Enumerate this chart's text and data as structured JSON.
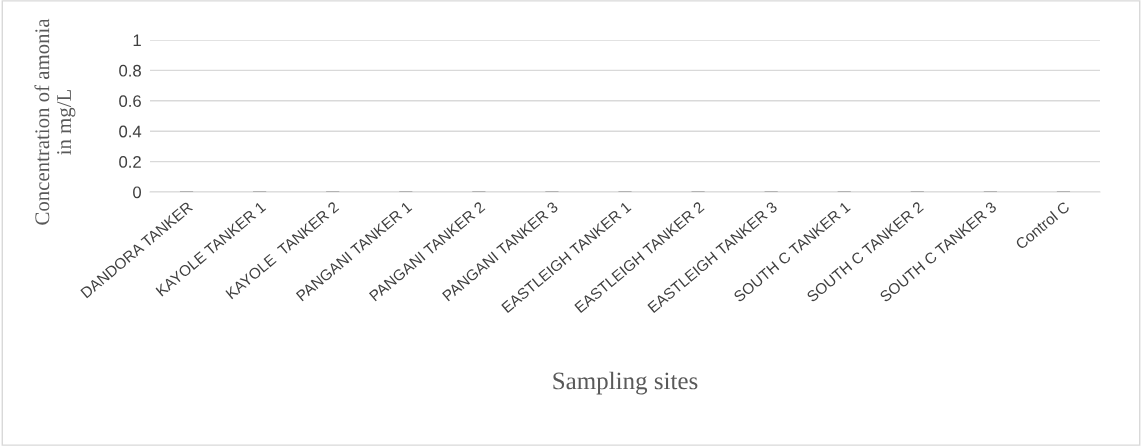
{
  "chart_data": {
    "type": "bar",
    "xlabel": "Sampling sites",
    "ylabel": "Concentration of amonia\nin mg/L",
    "categories": [
      "DANDORA TANKER",
      "KAYOLE TANKER 1",
      "KAYOLE  TANKER 2",
      "PANGANI TANKER 1",
      "PANGANI TANKER 2",
      "PANGANI TANKER 3",
      "EASTLEIGH TANKER 1",
      "EASTLEIGH TANKER 2",
      "EASTLEIGH TANKER 3",
      "SOUTH C TANKER 1",
      "SOUTH C TANKER 2",
      "SOUTH C TANKER 3",
      "Control C"
    ],
    "values": [
      0,
      0,
      0,
      0,
      0,
      0,
      0,
      0,
      0,
      0,
      0,
      0,
      0
    ],
    "color": "#a5a5a5",
    "ylim": [
      0,
      1
    ],
    "yticks": [
      0,
      0.2,
      0.4,
      0.6,
      0.8,
      1
    ],
    "grid": "y",
    "legend": false
  }
}
